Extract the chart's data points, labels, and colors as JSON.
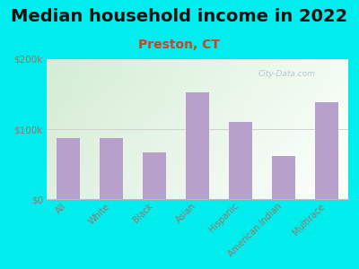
{
  "title": "Median household income in 2022",
  "subtitle": "Preston, CT",
  "categories": [
    "All",
    "White",
    "Black",
    "Asian",
    "Hispanic",
    "American Indian",
    "Multirace"
  ],
  "values": [
    87000,
    87000,
    67000,
    152000,
    110000,
    62000,
    138000
  ],
  "bar_color": "#b8a0cc",
  "title_fontsize": 14,
  "subtitle_fontsize": 10,
  "subtitle_color": "#cc4422",
  "tick_label_color": "#997766",
  "background_outer": "#00eded",
  "ylim": [
    0,
    200000
  ],
  "ytick_labels": [
    "$0",
    "$100k",
    "$200k"
  ],
  "watermark": "City-Data.com"
}
